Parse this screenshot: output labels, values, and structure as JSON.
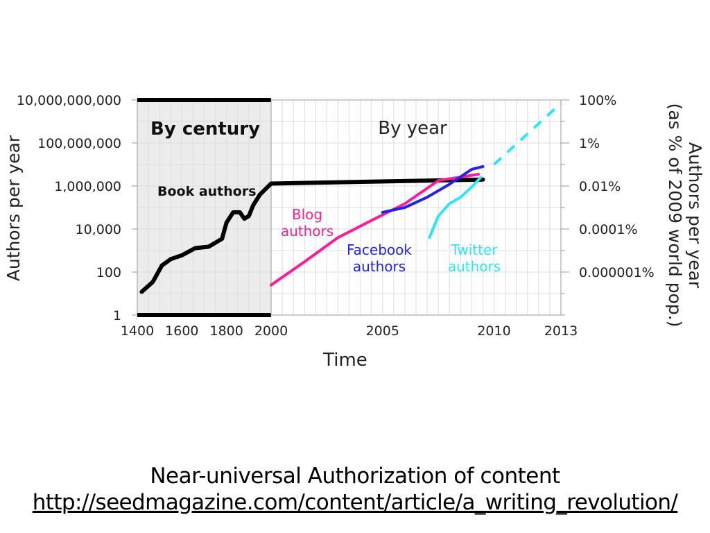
{
  "slide": {
    "caption_title": "Near-universal Authorization of content",
    "caption_link": "http://seedmagazine.com/content/article/a_writing_revolution/"
  },
  "chart_data": {
    "type": "line",
    "title": "",
    "xlabel": "Time",
    "ylabel": "Authors per year",
    "ylabel_right": [
      "Authors per year",
      "(as % of 2009 world pop.)"
    ],
    "y_scale": "log",
    "ylim": [
      1,
      10000000000
    ],
    "x_segments": [
      {
        "name": "By century",
        "range": [
          1400,
          2000
        ],
        "shaded": true
      },
      {
        "name": "By year",
        "range": [
          2000,
          2013
        ],
        "shaded": false
      }
    ],
    "x_ticks": [
      "1400",
      "1600",
      "1800",
      "2000",
      "2005",
      "2010",
      "2013"
    ],
    "y_ticks": [
      "1",
      "100",
      "10,000",
      "1,000,000",
      "100,000,000",
      "10,000,000,000"
    ],
    "y_ticks_right": [
      "0.000001%",
      "0.0001%",
      "0.01%",
      "1%",
      "100%"
    ],
    "grid": true,
    "series": [
      {
        "name": "Book authors",
        "label": "Book authors",
        "color": "#000000",
        "segments": [
          {
            "x": [
              1420,
              1470,
              1510,
              1550,
              1600,
              1660,
              1720,
              1780,
              1800,
              1830,
              1860,
              1880,
              1900,
              1920,
              1950,
              2000
            ],
            "y": [
              12,
              35,
              200,
              400,
              600,
              1300,
              1500,
              3500,
              20000,
              60000,
              60000,
              30000,
              40000,
              130000,
              400000,
              1300000
            ]
          },
          {
            "x": [
              2000,
              2009.5
            ],
            "y": [
              1300000,
              2000000
            ]
          }
        ]
      },
      {
        "name": "Blog authors",
        "label": "Blog authors",
        "color": "#ff1c9a",
        "segments": [
          {
            "x": [
              2000,
              2001.5,
              2003,
              2004.5,
              2006,
              2007.5,
              2009.3
            ],
            "y": [
              25,
              300,
              4000,
              25000,
              150000,
              1800000,
              3500000
            ]
          }
        ]
      },
      {
        "name": "Facebook authors",
        "label": "Facebook authors",
        "color": "#2222ee",
        "segments": [
          {
            "x": [
              2005,
              2006,
              2007,
              2008,
              2009,
              2009.5
            ],
            "y": [
              60000,
              100000,
              300000,
              1200000,
              6000000,
              8000000
            ]
          }
        ]
      },
      {
        "name": "Twitter authors",
        "label": "Twitter authors",
        "color": "#2ee6f7",
        "segments": [
          {
            "x": [
              2007.1,
              2007.5,
              2008,
              2008.5,
              2009,
              2009.4
            ],
            "y": [
              4000,
              40000,
              150000,
              300000,
              900000,
              2500000
            ]
          }
        ]
      },
      {
        "name": "Twitter projection",
        "label": "",
        "color": "#2ee6f7",
        "dashed": true,
        "segments": [
          {
            "x": [
              2010,
              2013
            ],
            "y": [
              10000000,
              7000000000
            ]
          }
        ]
      }
    ]
  }
}
